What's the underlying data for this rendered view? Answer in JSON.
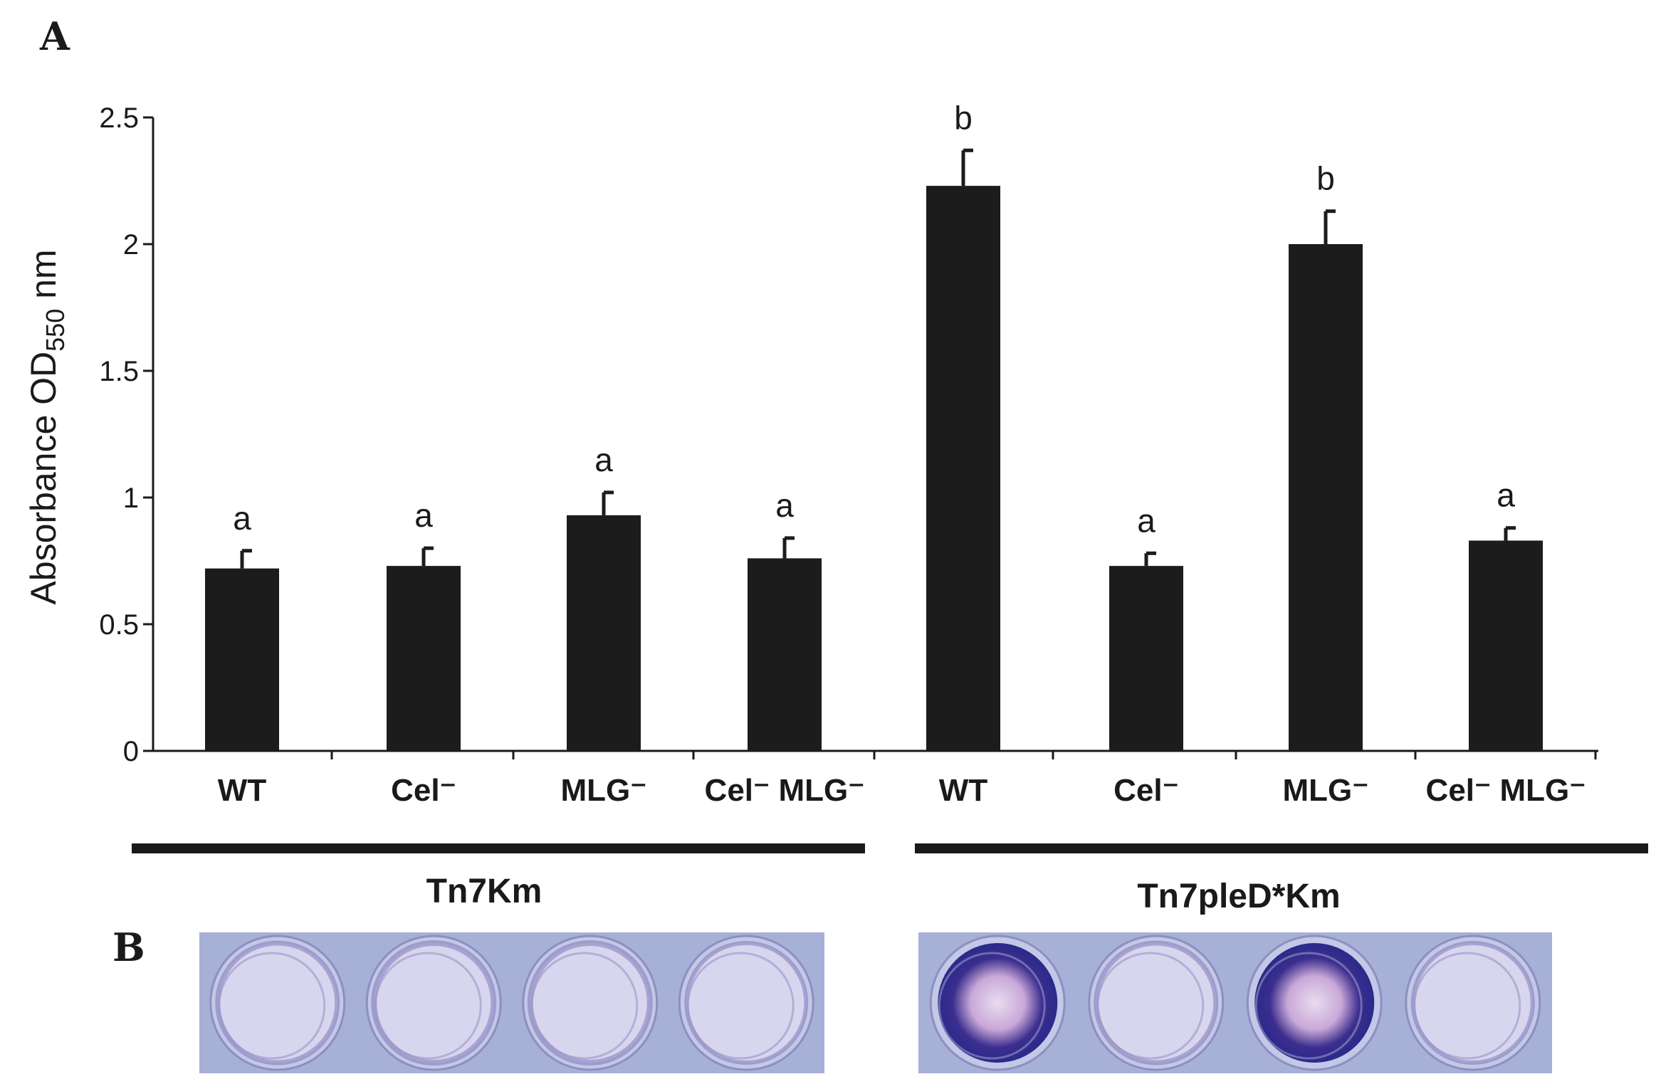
{
  "panels": {
    "a_letter": "A",
    "b_letter": "B"
  },
  "chart_data": {
    "type": "bar",
    "ylabel_main": "Absorbance OD",
    "ylabel_sub": "550",
    "ylabel_unit": " nm",
    "ylim": [
      0,
      2.5
    ],
    "yticks": [
      0,
      0.5,
      1,
      1.5,
      2,
      2.5
    ],
    "ytick_labels": [
      "0",
      "0.5",
      "1",
      "1.5",
      "2",
      "2.5"
    ],
    "grid": false,
    "bar_color": "#1c1c1c",
    "categories": [
      "WT",
      "Cel⁻",
      "MLG⁻",
      "Cel⁻ MLG⁻",
      "WT",
      "Cel⁻",
      "MLG⁻",
      "Cel⁻ MLG⁻"
    ],
    "values": [
      0.72,
      0.73,
      0.93,
      0.76,
      2.23,
      0.73,
      2.0,
      0.83
    ],
    "errors": [
      0.07,
      0.07,
      0.09,
      0.08,
      0.14,
      0.05,
      0.13,
      0.05
    ],
    "significance": [
      "a",
      "a",
      "a",
      "a",
      "b",
      "a",
      "b",
      "a"
    ],
    "groups": [
      {
        "label": "Tn7Km",
        "categories": [
          0,
          1,
          2,
          3
        ]
      },
      {
        "label": "Tn7pleD*Km",
        "categories": [
          4,
          5,
          6,
          7
        ]
      }
    ]
  },
  "photo": {
    "wells_per_strip": 4,
    "strip_background": "#a7b0d6",
    "well_stains": [
      0.15,
      0.2,
      0.2,
      0.1,
      0.95,
      0.15,
      0.9,
      0.1
    ]
  }
}
